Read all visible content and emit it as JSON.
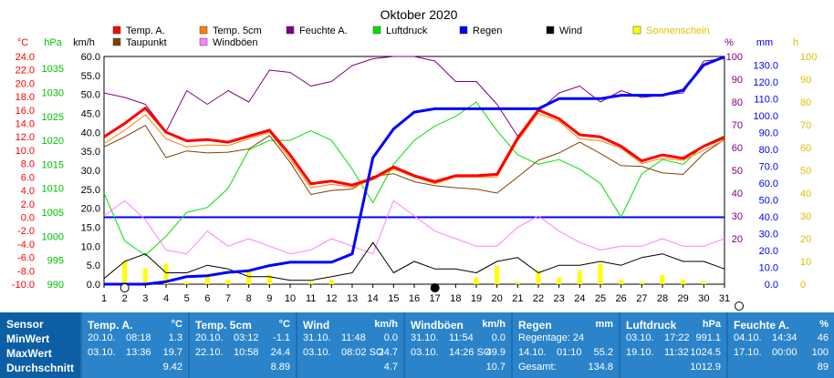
{
  "chart_data": {
    "type": "line",
    "title": "Oktober 2020",
    "x": [
      1,
      2,
      3,
      4,
      5,
      6,
      7,
      8,
      9,
      10,
      11,
      12,
      13,
      14,
      15,
      16,
      17,
      18,
      19,
      20,
      21,
      22,
      23,
      24,
      25,
      26,
      27,
      28,
      29,
      30,
      31
    ],
    "axes": {
      "temp": {
        "unit": "°C",
        "ticks": [
          "24.0",
          "22.0",
          "20.0",
          "18.0",
          "16.0",
          "14.0",
          "12.0",
          "10.0",
          "8.0",
          "6.0",
          "4.0",
          "2.0",
          "0.0",
          "-2.0",
          "-4.0",
          "-6.0",
          "-8.0",
          "-10.0"
        ],
        "range": [
          -10,
          24
        ],
        "color": "#ff0000"
      },
      "press": {
        "unit": "hPa",
        "ticks": [
          "1035",
          "1030",
          "1025",
          "1020",
          "1015",
          "1010",
          "1005",
          "1000",
          "995",
          "990"
        ],
        "range": [
          990,
          1037.5
        ],
        "color": "#00c000"
      },
      "wind": {
        "unit": "km/h",
        "ticks": [
          "60.0",
          "55.0",
          "50.0",
          "45.0",
          "40.0",
          "35.0",
          "30.0",
          "25.0",
          "20.0",
          "15.0",
          "10.0",
          "5.0",
          "0.0"
        ],
        "range": [
          0,
          60
        ],
        "color": "#000000"
      },
      "hum": {
        "unit": "%",
        "ticks": [
          "100",
          "90",
          "80",
          "70",
          "60",
          "50",
          "40",
          "30",
          "20"
        ],
        "range": [
          0,
          100
        ],
        "color": "#800080"
      },
      "rain": {
        "unit": "mm",
        "ticks": [
          "130.0",
          "120.0",
          "110.0",
          "100.0",
          "90.0",
          "80.0",
          "70.0",
          "60.0",
          "50.0",
          "40.0",
          "30.0",
          "20.0",
          "10.0",
          "0.0"
        ],
        "range": [
          0,
          135
        ],
        "color": "#0000ff"
      },
      "sun": {
        "unit": "h",
        "ticks": [
          "100",
          "90",
          "80",
          "70",
          "60",
          "50",
          "40",
          "30",
          "20",
          "10",
          "0"
        ],
        "range": [
          0,
          100
        ],
        "color": "#e0c000"
      }
    },
    "series": [
      {
        "name": "Temp. A.",
        "axis": "temp",
        "color": "#ff0000",
        "width": 3,
        "values": [
          12.0,
          14.0,
          16.3,
          12.7,
          11.4,
          11.6,
          11.2,
          12.1,
          13.0,
          9.3,
          5.0,
          5.4,
          4.8,
          5.8,
          7.5,
          6.2,
          5.3,
          6.2,
          6.2,
          6.4,
          11.8,
          16.0,
          14.7,
          12.3,
          12.0,
          10.6,
          8.4,
          9.3,
          8.8,
          10.6,
          11.9
        ]
      },
      {
        "name": "Temp. 5cm",
        "axis": "temp",
        "color": "#ff8000",
        "width": 1,
        "values": [
          11.0,
          13.0,
          15.3,
          11.7,
          10.5,
          10.8,
          10.7,
          11.7,
          12.7,
          8.7,
          4.4,
          4.9,
          4.5,
          5.6,
          7.2,
          6.0,
          5.0,
          6.0,
          6.0,
          6.0,
          11.4,
          15.5,
          14.3,
          11.7,
          11.4,
          10.3,
          8.0,
          8.8,
          8.5,
          10.0,
          11.5
        ]
      },
      {
        "name": "Taupunkt",
        "axis": "temp",
        "color": "#804000",
        "width": 1,
        "values": [
          10.5,
          12.0,
          13.7,
          8.9,
          9.9,
          9.6,
          9.7,
          10.2,
          12.2,
          8.2,
          3.4,
          4.0,
          4.2,
          6.1,
          6.5,
          5.3,
          4.7,
          4.4,
          4.2,
          3.6,
          6.0,
          8.5,
          9.6,
          11.2,
          9.5,
          7.7,
          7.6,
          6.6,
          6.4,
          9.5,
          11.6
        ]
      },
      {
        "name": "Feuchte A.",
        "axis": "hum",
        "color": "#800080",
        "width": 1,
        "values": [
          84,
          82,
          79,
          67,
          85,
          79,
          85,
          80,
          94,
          93,
          87,
          89,
          96,
          99,
          100,
          100,
          98,
          89,
          89,
          79,
          65,
          76,
          84,
          87,
          80,
          85,
          82,
          83,
          84,
          98,
          99
        ]
      },
      {
        "name": "Windböen",
        "axis": "wind",
        "color": "#ff80ff",
        "width": 1,
        "values": [
          18,
          22,
          17,
          9,
          8,
          14,
          10,
          12,
          10,
          8,
          9,
          12,
          10,
          8,
          22,
          18,
          14,
          12,
          10,
          10,
          15,
          18,
          14,
          11,
          9,
          10,
          10,
          12,
          10,
          10,
          12
        ]
      },
      {
        "name": "Luftdruck",
        "axis": "press",
        "color": "#00e000",
        "width": 1,
        "values": [
          1009,
          999,
          996,
          1000,
          1005,
          1006,
          1010,
          1018,
          1020,
          1020,
          1022,
          1020,
          1014,
          1007,
          1015,
          1020,
          1023,
          1025,
          1028,
          1022,
          1017,
          1015,
          1016,
          1014,
          1011,
          1004,
          1013,
          1016,
          1015,
          1019,
          1021
        ]
      },
      {
        "name": "Regen",
        "axis": "rain",
        "color": "#0000ff",
        "width": 3,
        "values": [
          0,
          0,
          0,
          1.5,
          4.5,
          5.0,
          7,
          8,
          11,
          13,
          13,
          13,
          18,
          75,
          92,
          102,
          104,
          104,
          104,
          104,
          104,
          104,
          110,
          110,
          110,
          112,
          112,
          112,
          115,
          130,
          134.8
        ]
      },
      {
        "name": "Wind",
        "axis": "wind",
        "color": "#000000",
        "width": 1,
        "values": [
          1.5,
          6,
          8,
          3,
          3,
          5,
          4,
          2,
          2,
          1,
          1,
          2,
          3,
          11,
          3,
          6,
          4,
          4,
          3,
          6,
          7,
          3,
          5,
          5,
          6,
          5,
          7,
          8,
          6,
          6,
          4
        ]
      },
      {
        "name": "Sonnenschein",
        "axis": "sun",
        "color": "#ffff00",
        "type": "bar",
        "values": [
          0,
          10,
          7,
          9,
          1,
          4,
          2,
          6,
          4,
          0,
          1,
          2,
          0,
          0,
          0,
          0,
          0,
          0,
          3,
          8,
          1,
          6,
          3,
          6,
          9,
          2,
          1,
          4,
          2,
          1,
          0
        ]
      }
    ],
    "zero_line": {
      "axis": "temp",
      "value": 0,
      "color": "#0000ff"
    }
  },
  "legend": [
    {
      "label": "Temp. A.",
      "color": "#ff0000"
    },
    {
      "label": "Temp. 5cm",
      "color": "#ff8000"
    },
    {
      "label": "Feuchte A.",
      "color": "#800080"
    },
    {
      "label": "Luftdruck",
      "color": "#00e000"
    },
    {
      "label": "Regen",
      "color": "#0000ff"
    },
    {
      "label": "Wind",
      "color": "#000000"
    },
    {
      "label": "Sonnenschein",
      "color": "#ffff00"
    },
    {
      "label": "Taupunkt",
      "color": "#804000"
    },
    {
      "label": "Windböen",
      "color": "#ff80ff"
    }
  ],
  "table": {
    "row_labels": [
      "Sensor",
      "MinWert",
      "MaxWert",
      "Durchschnitt"
    ],
    "boxes": [
      {
        "header": "Temp. A.",
        "unit": "°C",
        "rows": [
          [
            "20.10.",
            "08:18",
            "1.3"
          ],
          [
            "03.10.",
            "13:36",
            "19.7"
          ],
          [
            "",
            "",
            "9.42"
          ]
        ]
      },
      {
        "header": "Temp. 5cm",
        "unit": "°C",
        "rows": [
          [
            "20.10.",
            "03:12",
            "-1.1"
          ],
          [
            "22.10.",
            "10:58",
            "24.4"
          ],
          [
            "",
            "",
            "8.89"
          ]
        ]
      },
      {
        "header": "Wind",
        "unit": "km/h",
        "rows": [
          [
            "31.10.",
            "11:48",
            "0.0"
          ],
          [
            "03.10.",
            "08:02 SO",
            "24.7"
          ],
          [
            "",
            "",
            "4.7"
          ]
        ]
      },
      {
        "header": "Windböen",
        "unit": "km/h",
        "rows": [
          [
            "31.10.",
            "11:54",
            "0.0"
          ],
          [
            "03.10.",
            "14:26 SO",
            "49.9"
          ],
          [
            "",
            "",
            "10.7"
          ]
        ]
      },
      {
        "header": "Regen",
        "unit": "mm",
        "rows": [
          [
            "Regentage: 24",
            "",
            ""
          ],
          [
            "14.10.",
            "01:10",
            "55.2"
          ],
          [
            "Gesamt:",
            "",
            "134.8"
          ]
        ]
      },
      {
        "header": "Luftdruck",
        "unit": "hPa",
        "rows": [
          [
            "03.10.",
            "17:22",
            "991.1"
          ],
          [
            "19.10.",
            "11:32",
            "1024.5"
          ],
          [
            "",
            "",
            "1012.9"
          ]
        ]
      },
      {
        "header": "Feuchte A.",
        "unit": "%",
        "rows": [
          [
            "04.10.",
            "14:34",
            "46"
          ],
          [
            "17.10.",
            "00:00",
            "100"
          ],
          [
            "",
            "",
            "89"
          ]
        ]
      }
    ]
  }
}
